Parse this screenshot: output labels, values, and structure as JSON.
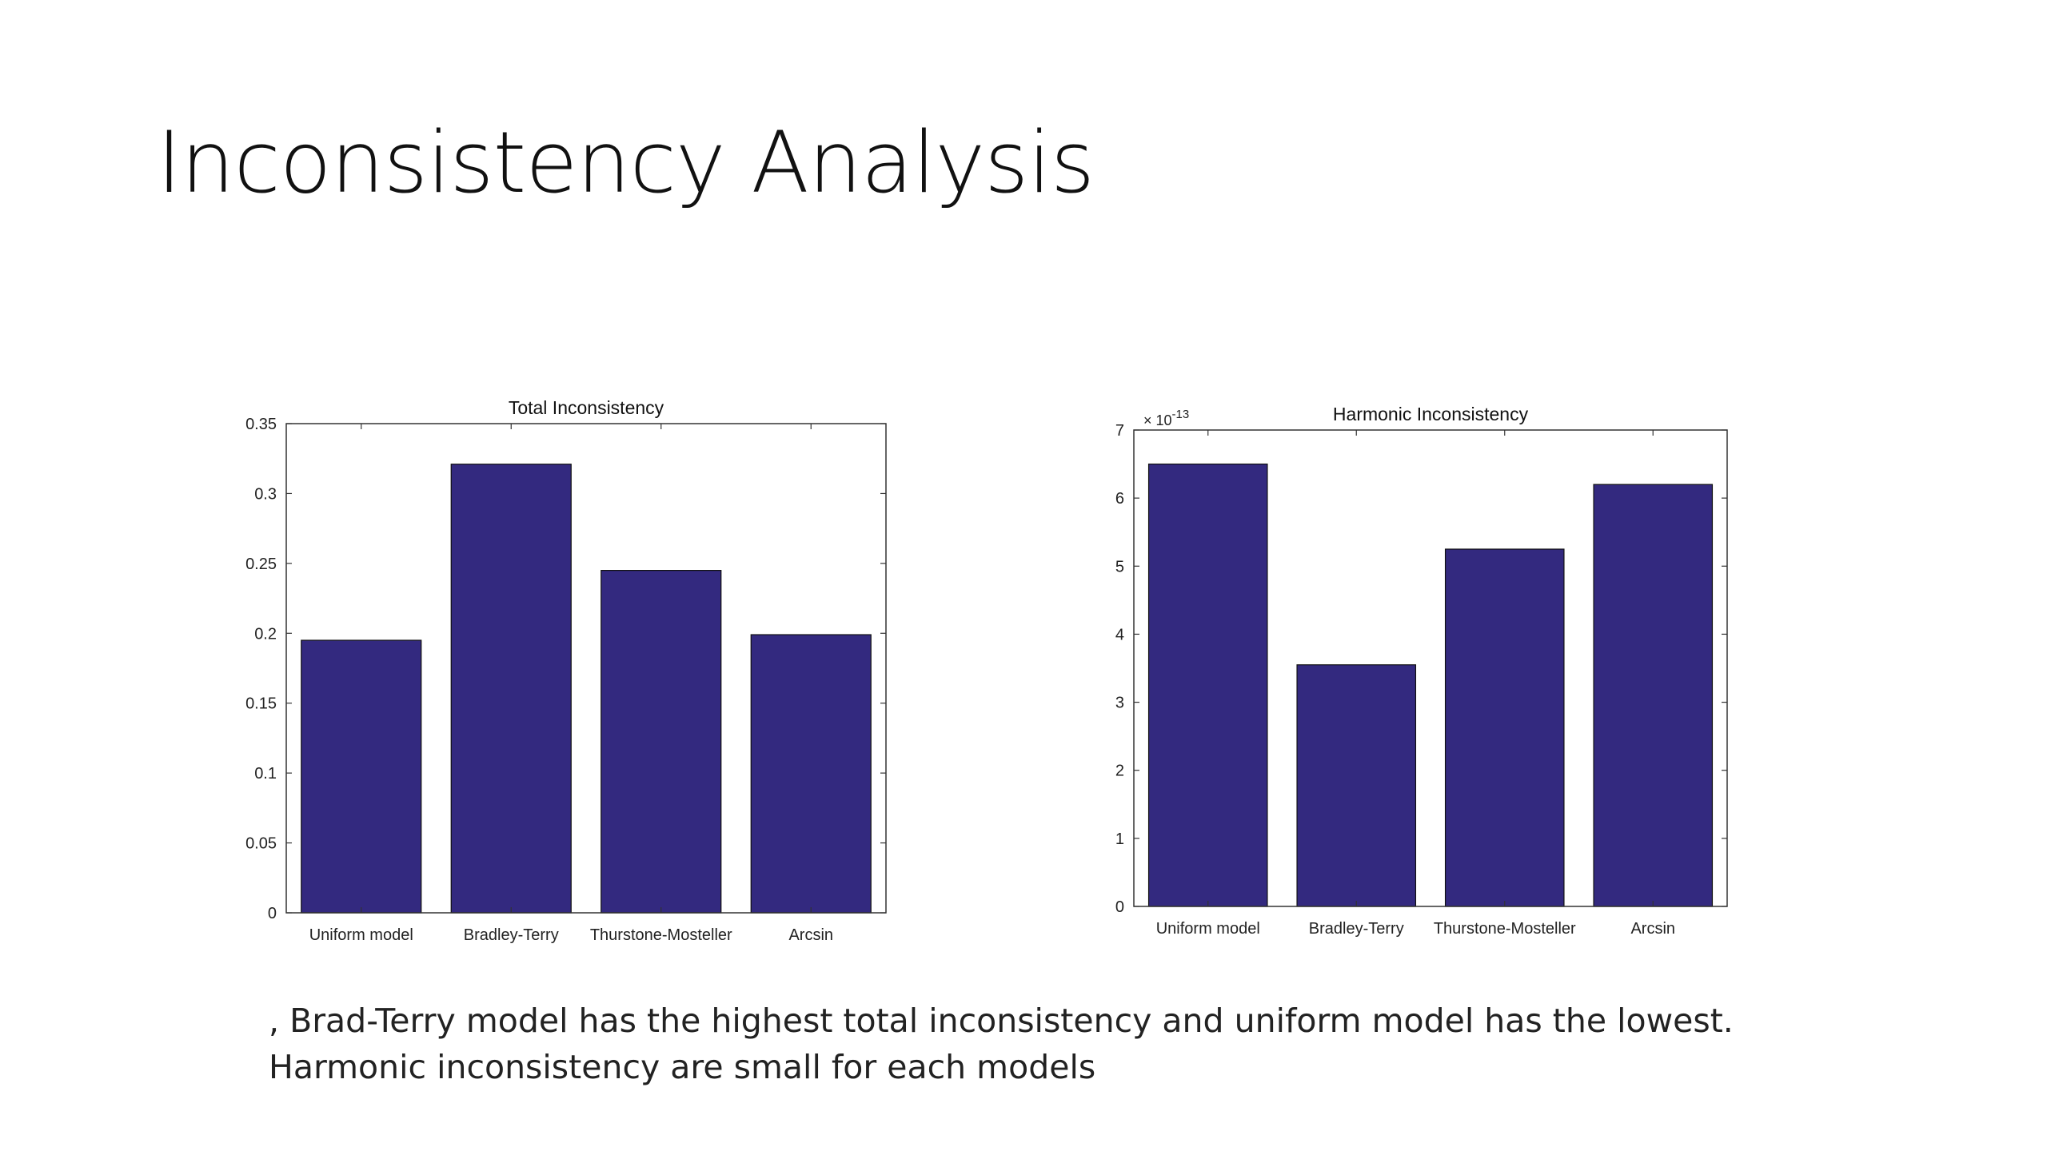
{
  "slide": {
    "title": "Inconsistency Analysis",
    "caption_lines": [
      ", Brad-Terry model has the highest total inconsistency and uniform model has the lowest.",
      "Harmonic inconsistency are small for each models"
    ]
  },
  "chart_data": [
    {
      "type": "bar",
      "title": "Total Inconsistency",
      "categories": [
        "Uniform model",
        "Bradley-Terry",
        "Thurstone-Mosteller",
        "Arcsin"
      ],
      "values": [
        0.195,
        0.321,
        0.245,
        0.199
      ],
      "xlabel": "",
      "ylabel": "",
      "ylim": [
        0,
        0.35
      ],
      "yticks": [
        "0",
        "0.05",
        "0.1",
        "0.15",
        "0.2",
        "0.25",
        "0.3",
        "0.35"
      ],
      "ytick_values": [
        0,
        0.05,
        0.1,
        0.15,
        0.2,
        0.25,
        0.3,
        0.35
      ],
      "exponent_label": "",
      "bar_color": "#33297f",
      "grid": false
    },
    {
      "type": "bar",
      "title": "Harmonic Inconsistency",
      "categories": [
        "Uniform model",
        "Bradley-Terry",
        "Thurstone-Mosteller",
        "Arcsin"
      ],
      "values": [
        6.5e-13,
        3.55e-13,
        5.25e-13,
        6.2e-13
      ],
      "xlabel": "",
      "ylabel": "",
      "ylim": [
        0,
        7e-13
      ],
      "yticks": [
        "0",
        "1",
        "2",
        "3",
        "4",
        "5",
        "6",
        "7"
      ],
      "ytick_values": [
        0,
        1e-13,
        2e-13,
        3e-13,
        4e-13,
        5e-13,
        6e-13,
        7e-13
      ],
      "exponent_label": "× 10",
      "exponent_power": "-13",
      "bar_color": "#33297f",
      "grid": false
    }
  ]
}
